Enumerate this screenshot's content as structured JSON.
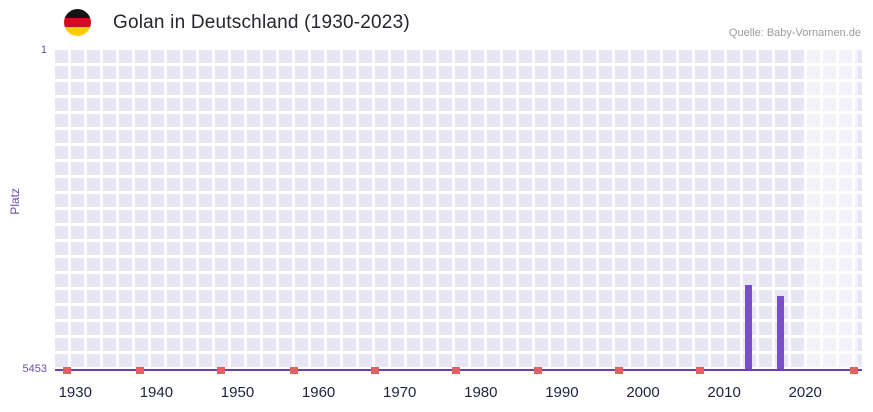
{
  "header": {
    "title": "Golan in Deutschland (1930-2023)",
    "source": "Quelle: Baby-Vornamen.de",
    "flag_icon": "german-flag"
  },
  "chart_data": {
    "type": "bar",
    "title": "Golan in Deutschland (1930-2023)",
    "xlabel": "",
    "ylabel": "Platz",
    "y_axis": {
      "min": 1,
      "max": 5453,
      "inverted": true,
      "top_tick": "1",
      "bottom_tick": "5453"
    },
    "x_range": [
      1927.5,
      2027
    ],
    "x_ticks": [
      1930,
      1940,
      1950,
      1960,
      1970,
      1980,
      1990,
      2000,
      2010,
      2020
    ],
    "bars": [
      {
        "year": 2013,
        "rank": 4000
      },
      {
        "year": 2017,
        "rank": 4200
      }
    ],
    "no_rank_marker_years": [
      1929,
      1938,
      1948,
      1957,
      1967,
      1977,
      1987,
      1997,
      2007,
      2026
    ],
    "highlight_band": {
      "start": 2020,
      "end": 2026.5
    },
    "grid": true,
    "legend": "none",
    "colors": {
      "bar": "#7a4fc9",
      "no_rank_marker": "#e0615f",
      "plot_background": "#e9e6f4",
      "grid_line": "#ffffff",
      "recent_band": "rgba(255,255,255,0.45)",
      "axis_text": "#6a4fae",
      "tick_text": "#1e2240",
      "baseline": "#6a3fb5"
    }
  }
}
